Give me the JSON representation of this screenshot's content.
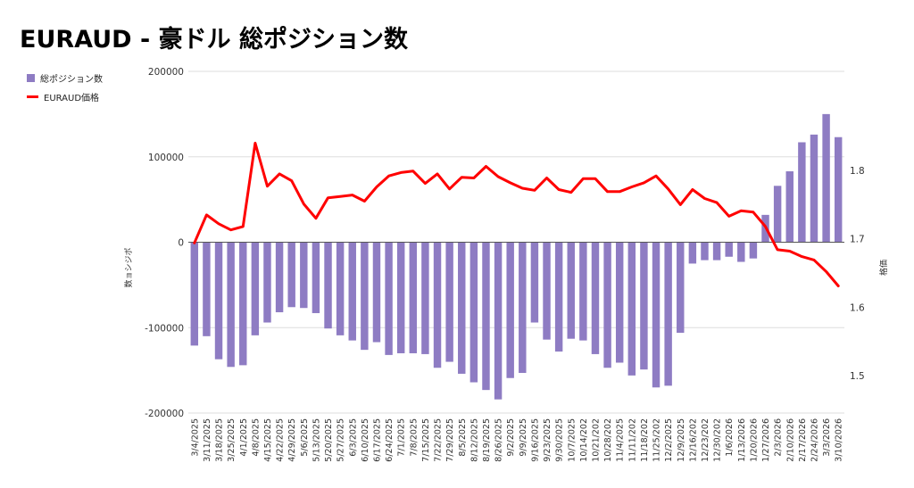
{
  "title": "EURAUD - 豪ドル 総ポジション数",
  "colors": {
    "bar": "#8e7cc3",
    "line": "#ff0000",
    "grid": "#dddddd",
    "axis": "#333333"
  },
  "legend": [
    {
      "label": "総ポジション数",
      "kind": "bar"
    },
    {
      "label": "EURAUD価格",
      "kind": "line"
    }
  ],
  "chart_data": {
    "type": "bar+line",
    "title": "EURAUD - 豪ドル 総ポジション数",
    "ylabel_left": "数ョシジポ",
    "ylabel_right": "格価",
    "ylim_left": [
      -200000,
      200000
    ],
    "yticks_left": [
      {
        "value": 200000,
        "label": "200000"
      },
      {
        "value": 100000,
        "label": "100000"
      },
      {
        "value": 0,
        "label": "0"
      },
      {
        "value": -100000,
        "label": "-100000"
      },
      {
        "value": -200000,
        "label": "-200000"
      }
    ],
    "ylim_right": [
      1.445,
      1.945
    ],
    "yticks_right": [
      {
        "value": 1.8,
        "label": "1.8"
      },
      {
        "value": 1.7,
        "label": "1.7"
      },
      {
        "value": 1.6,
        "label": "1.6"
      },
      {
        "value": 1.5,
        "label": "1.5"
      }
    ],
    "grid": true,
    "legend_position": "top-left",
    "categories": [
      "3/4/2025",
      "3/11/2025",
      "3/18/2025",
      "3/25/2025",
      "4/1/2025",
      "4/8/2025",
      "4/15/2025",
      "4/22/2025",
      "4/29/2025",
      "5/6/2025",
      "5/13/2025",
      "5/20/2025",
      "5/27/2025",
      "6/3/2025",
      "6/10/2025",
      "6/17/2025",
      "6/24/2025",
      "7/1/2025",
      "7/8/2025",
      "7/15/2025",
      "7/22/2025",
      "7/29/2025",
      "8/5/2025",
      "8/12/2025",
      "8/19/2025",
      "8/26/2025",
      "9/2/2025",
      "9/9/2025",
      "9/16/2025",
      "9/23/2025",
      "9/30/2025",
      "10/7/2025",
      "10/14/202",
      "10/21/202",
      "10/28/202",
      "11/4/2025",
      "11/11/202",
      "11/18/202",
      "11/25/202",
      "12/2/2025",
      "12/9/2025",
      "12/16/202",
      "12/23/202",
      "12/30/202",
      "1/6/2026",
      "1/13/2026",
      "1/20/2026",
      "1/27/2026",
      "2/3/2026",
      "2/10/2026",
      "2/17/2026",
      "2/24/2026",
      "3/3/2026",
      "3/10/2026"
    ],
    "series": [
      {
        "name": "総ポジション数",
        "kind": "bar",
        "axis": "left",
        "values": [
          -121000,
          -110000,
          -137000,
          -146000,
          -144000,
          -109000,
          -94000,
          -82000,
          -76000,
          -77000,
          -83000,
          -101000,
          -109000,
          -115000,
          -126000,
          -117000,
          -132000,
          -130000,
          -130000,
          -131000,
          -147000,
          -140000,
          -154000,
          -164000,
          -173000,
          -184000,
          -159000,
          -153000,
          -94000,
          -114000,
          -128000,
          -113000,
          -115000,
          -131000,
          -147000,
          -141000,
          -156000,
          -149000,
          -170000,
          -168000,
          -106000,
          -25000,
          -21000,
          -21000,
          -17000,
          -23000,
          -19000,
          32000,
          66000,
          83000,
          117000,
          126000,
          150000,
          123000
        ]
      },
      {
        "name": "EURAUD価格",
        "kind": "line",
        "axis": "right",
        "values": [
          1.694,
          1.735,
          1.722,
          1.713,
          1.718,
          1.84,
          1.777,
          1.795,
          1.785,
          1.751,
          1.73,
          1.76,
          1.762,
          1.764,
          1.755,
          1.776,
          1.792,
          1.797,
          1.799,
          1.781,
          1.795,
          1.773,
          1.79,
          1.789,
          1.806,
          1.791,
          1.782,
          1.774,
          1.771,
          1.789,
          1.772,
          1.768,
          1.788,
          1.788,
          1.769,
          1.769,
          1.776,
          1.782,
          1.792,
          1.773,
          1.75,
          1.772,
          1.759,
          1.753,
          1.733,
          1.741,
          1.739,
          1.718,
          1.684,
          1.682,
          1.674,
          1.669,
          1.652,
          1.631
        ]
      }
    ]
  }
}
